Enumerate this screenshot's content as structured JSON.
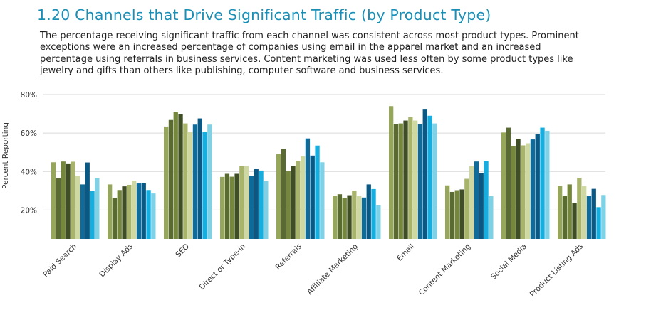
{
  "header": {
    "title": "1.20 Channels that Drive Significant Traffic (by Product Type)",
    "description": "The percentage receiving significant traffic from each channel was consistent across most product types. Prominent exceptions were an increased percentage of companies using email in the apparel market and an increased percentage using referrals in business services. Content marketing was used less often by some product types like jewelry and gifts than others like publishing, computer software and business services."
  },
  "chart_data": {
    "type": "bar",
    "title": "",
    "xlabel": "",
    "ylabel": "Percent Reporting",
    "ylim": [
      5,
      80
    ],
    "yticks": [
      20,
      40,
      60,
      80
    ],
    "ytick_labels": [
      "20%",
      "40%",
      "60%",
      "80%"
    ],
    "grid": true,
    "categories": [
      "Paid Search",
      "Display Ads",
      "SEO",
      "Direct or Type-in",
      "Referrals",
      "Affiliate Marketing",
      "Email",
      "Content Marketing",
      "Social Media",
      "Product Listing Ads"
    ],
    "series_colors": [
      "#96a65a",
      "#5a6b31",
      "#75873d",
      "#3f4e24",
      "#a7b46a",
      "#cfd8a0",
      "#0f6c9a",
      "#0a5884",
      "#15aee0",
      "#7fd1e6"
    ],
    "groups": [
      [
        44.8,
        36.6,
        45.2,
        44.2,
        45.1,
        37.8,
        33.3,
        44.7,
        29.8,
        36.6
      ],
      [
        33.3,
        26.3,
        30.4,
        32.3,
        33.1,
        35.2,
        33.8,
        34.0,
        30.4,
        28.6
      ],
      [
        63.4,
        66.8,
        70.8,
        69.8,
        65.0,
        60.5,
        64.4,
        67.6,
        60.5,
        64.4
      ],
      [
        37.2,
        38.8,
        37.3,
        38.8,
        42.7,
        43.0,
        37.8,
        41.2,
        40.5,
        35.0
      ],
      [
        49.0,
        51.8,
        40.4,
        42.9,
        45.5,
        48.0,
        57.2,
        48.3,
        53.5,
        44.8
      ],
      [
        27.5,
        28.2,
        26.3,
        27.7,
        30.0,
        27.2,
        26.5,
        33.3,
        30.9,
        22.6
      ],
      [
        74.0,
        64.5,
        65.0,
        66.5,
        68.3,
        66.5,
        64.5,
        72.2,
        69.0,
        65.0
      ],
      [
        32.8,
        29.4,
        30.3,
        30.7,
        36.2,
        42.9,
        45.2,
        39.2,
        45.3,
        27.3
      ],
      [
        60.3,
        62.8,
        53.3,
        57.0,
        53.6,
        54.7,
        56.7,
        59.3,
        62.8,
        61.2
      ],
      [
        32.5,
        27.5,
        33.3,
        23.8,
        36.7,
        32.5,
        27.5,
        31.0,
        21.5,
        27.8
      ]
    ]
  }
}
